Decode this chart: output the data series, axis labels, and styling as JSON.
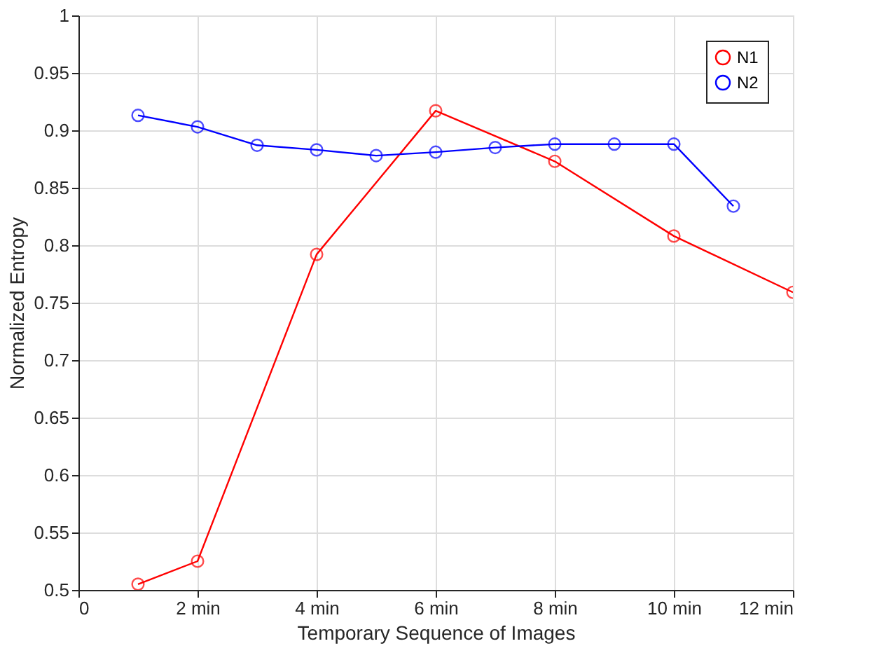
{
  "chart_data": {
    "type": "line",
    "xlabel": "Temporary Sequence of Images",
    "ylabel": "Normalized Entropy",
    "xlim": [
      0,
      12
    ],
    "xticks": [
      0,
      {
        "value": 2,
        "label": "2 min"
      },
      {
        "value": 4,
        "label": "4 min"
      },
      {
        "value": 6,
        "label": "6 min"
      },
      {
        "value": 8,
        "label": "8 min"
      },
      {
        "value": 10,
        "label": "10 min"
      },
      {
        "value": 12,
        "label": "12 min"
      }
    ],
    "ylim": [
      0.5,
      1
    ],
    "yticks": [
      0.5,
      0.55,
      0.6,
      0.65,
      0.7,
      0.75,
      0.8,
      0.85,
      0.9,
      0.95,
      1
    ],
    "grid": true,
    "legend": "top right",
    "marker": "circle",
    "line_style": "solid",
    "series": [
      {
        "name": "N1",
        "color": "#ff0000",
        "x": [
          1,
          2,
          4,
          6,
          8,
          10,
          12
        ],
        "values": [
          0.505,
          0.525,
          0.792,
          0.917,
          0.873,
          0.808,
          0.759
        ]
      },
      {
        "name": "N2",
        "color": "#0000ff",
        "x": [
          1,
          2,
          3,
          4,
          5,
          6,
          7,
          8,
          9,
          10,
          11
        ],
        "values": [
          0.913,
          0.903,
          0.887,
          0.883,
          0.878,
          0.881,
          0.885,
          0.888,
          0.888,
          0.888,
          0.834
        ]
      }
    ]
  }
}
